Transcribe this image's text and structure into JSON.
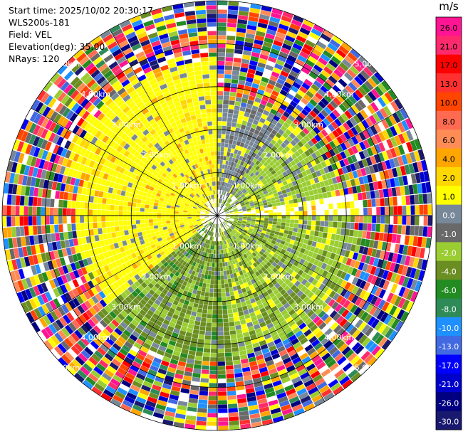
{
  "header": {
    "start_time": "Start time: 2025/10/02 20:30:17",
    "instrument": "WLS200s-181",
    "field": "Field: VEL",
    "elevation": "Elevation(deg): 35.00",
    "nrays": "NRays: 120"
  },
  "range_rings": [
    {
      "range_km": 1,
      "labels": [
        "1.00km",
        "1.00km",
        "1.00km",
        "1.00km"
      ]
    },
    {
      "range_km": 2,
      "labels": [
        "2.00km",
        "2.00km",
        "2.00km",
        "2.00km"
      ]
    },
    {
      "range_km": 3,
      "labels": [
        "3.00km",
        "3.00km",
        "3.00km",
        "3.00km"
      ]
    },
    {
      "range_km": 4,
      "labels": [
        "4.00km",
        "4.00km",
        "4.00km",
        "4.00km"
      ]
    },
    {
      "range_km": 5,
      "labels": [
        "5.00km",
        "5.00km",
        "5.00km",
        "5.00km"
      ]
    }
  ],
  "colorbar": {
    "unit": "m/s",
    "ticks": [
      "26.0",
      "21.0",
      "17.0",
      "13.0",
      "10.0",
      "8.0",
      "6.0",
      "4.0",
      "2.0",
      "1.0",
      "0.0",
      "-1.0",
      "-2.0",
      "-4.0",
      "-6.0",
      "-8.0",
      "-10.0",
      "-13.0",
      "-17.0",
      "-21.0",
      "-26.0",
      "-30.0"
    ],
    "colors": [
      "#ff1493",
      "#ff2a6d",
      "#ff0000",
      "#ff3030",
      "#ff4500",
      "#ff6a50",
      "#ff8c55",
      "#ffa500",
      "#ffd700",
      "#ffff00",
      "#778899",
      "#696969",
      "#9acd32",
      "#6b8e23",
      "#228b22",
      "#2e8b57",
      "#1e90ff",
      "#4169e1",
      "#0000ff",
      "#0000cd",
      "#000080",
      "#191970"
    ]
  },
  "chart_data": {
    "type": "ppi",
    "field": "VEL",
    "units": "m/s",
    "elevation_deg": 35.0,
    "n_rays": 120,
    "max_range_km": 5.0,
    "sectors": [
      {
        "azimuth_range_deg": [
          285,
          360
        ],
        "range_km": [
          0.4,
          3.6
        ],
        "dominant_velocity": "1.0 to 2.0 (yellow)"
      },
      {
        "azimuth_range_deg": [
          0,
          35
        ],
        "range_km": [
          0.6,
          2.6
        ],
        "dominant_velocity": "0.0 (gray)"
      },
      {
        "azimuth_range_deg": [
          35,
          80
        ],
        "range_km": [
          0.6,
          2.8
        ],
        "dominant_velocity": "-1.0 to -2.0 (light green)"
      },
      {
        "azimuth_range_deg": [
          90,
          170
        ],
        "range_km": [
          0.4,
          3.2
        ],
        "dominant_velocity": "-2.0 (green/olive)"
      },
      {
        "azimuth_range_deg": [
          170,
          230
        ],
        "range_km": [
          0.6,
          3.4
        ],
        "dominant_velocity": "-2.0 to -4.0 (olive)"
      },
      {
        "azimuth_range_deg": [
          230,
          285
        ],
        "range_km": [
          0.4,
          3.2
        ],
        "dominant_velocity": "1.0 to 2.0 (yellow)"
      }
    ],
    "outer_range_km": [
      3.6,
      5.0
    ],
    "outer_pattern": "noisy mixed velocities"
  }
}
